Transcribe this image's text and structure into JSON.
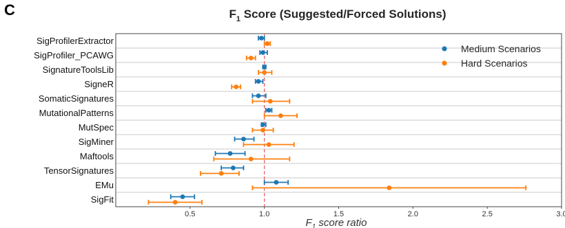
{
  "panel_letter": "C",
  "colors": {
    "medium": "#1f77b4",
    "hard": "#ff7f0e",
    "reference": "#e8575a",
    "row_line": "#c8c8c8"
  },
  "chart_data": {
    "type": "scatter",
    "title_main": "F",
    "title_sub": "1",
    "title_rest": " Score (Suggested/Forced Solutions)",
    "xlabel_main": "F",
    "xlabel_sub": "1",
    "xlabel_rest": " score ratio",
    "xlim": [
      0,
      3.0
    ],
    "xticks": [
      0.5,
      1.0,
      1.5,
      2.0,
      2.5,
      3.0
    ],
    "xtick_labels": [
      "0.5",
      "1.0",
      "1.5",
      "2.0",
      "2.5",
      "3.0"
    ],
    "reference_line": 1.0,
    "grid": "horizontal",
    "legend_position": "top-right",
    "categories": [
      "SigProfilerExtractor",
      "SigProfiler_PCAWG",
      "SignatureToolsLib",
      "SigneR",
      "SomaticSignatures",
      "MutationalPatterns",
      "MutSpec",
      "SigMiner",
      "Maftools",
      "TensorSignatures",
      "EMu",
      "SigFit"
    ],
    "series": [
      {
        "name": "Medium Scenarios",
        "values": [
          0.98,
          0.99,
          1.0,
          0.96,
          0.96,
          1.03,
          0.99,
          0.86,
          0.77,
          0.79,
          1.08,
          0.45
        ],
        "lower": [
          0.96,
          0.97,
          0.99,
          0.94,
          0.92,
          1.01,
          0.98,
          0.8,
          0.67,
          0.71,
          1.0,
          0.37
        ],
        "upper": [
          1.0,
          1.02,
          1.01,
          0.99,
          1.01,
          1.05,
          1.01,
          0.93,
          0.87,
          0.86,
          1.16,
          0.53
        ]
      },
      {
        "name": "Hard Scenarios",
        "values": [
          1.02,
          0.91,
          1.0,
          0.81,
          1.04,
          1.11,
          0.99,
          1.03,
          0.91,
          0.71,
          1.84,
          0.4
        ],
        "lower": [
          1.0,
          0.88,
          0.96,
          0.78,
          0.92,
          1.0,
          0.92,
          0.86,
          0.66,
          0.57,
          0.92,
          0.22
        ],
        "upper": [
          1.04,
          0.94,
          1.05,
          0.84,
          1.17,
          1.22,
          1.06,
          1.2,
          1.17,
          0.83,
          2.76,
          0.58
        ]
      }
    ]
  }
}
